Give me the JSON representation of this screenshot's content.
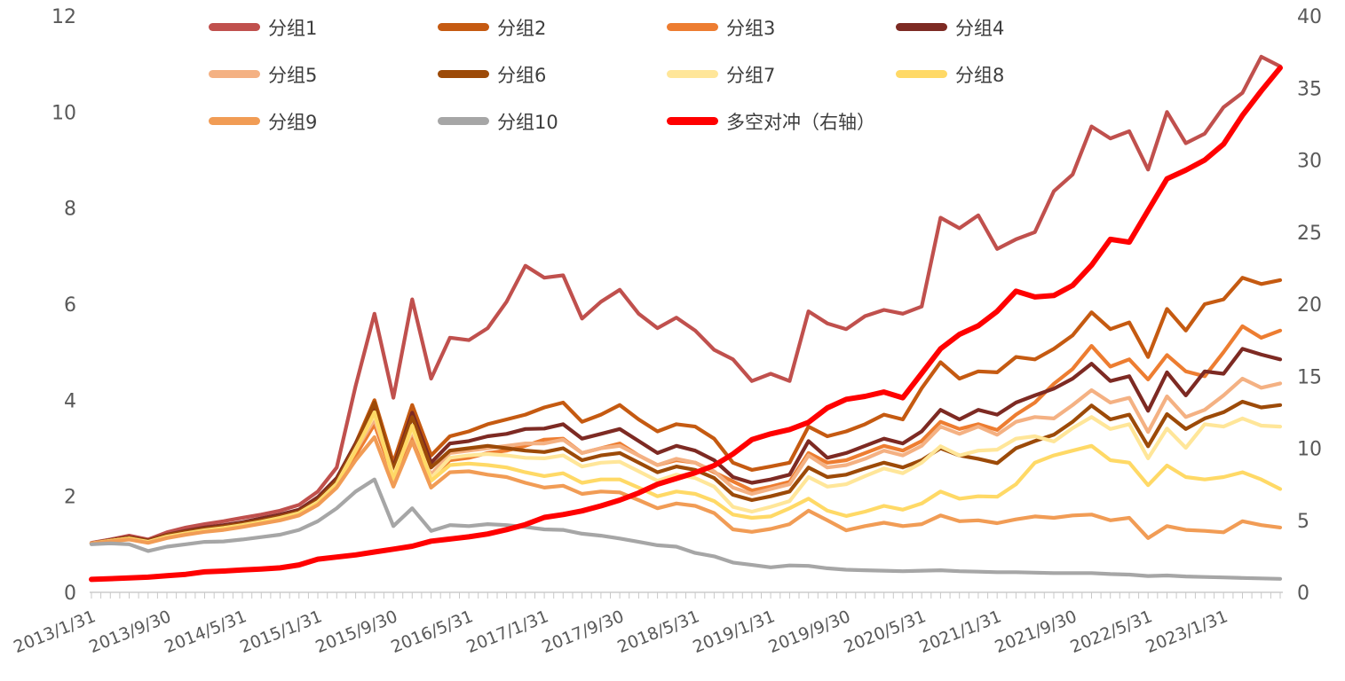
{
  "chart_data": {
    "type": "line",
    "title": "",
    "sampling": "bimonthly samples of monthly data",
    "x_start": "2013/1/31",
    "x_end": "2023/7/31",
    "points_per_series": 64,
    "x_tick_labels": [
      "2013/1/31",
      "2013/9/30",
      "2014/5/31",
      "2015/1/31",
      "2015/9/30",
      "2016/5/31",
      "2017/1/31",
      "2017/9/30",
      "2018/5/31",
      "2019/1/31",
      "2019/9/30",
      "2020/5/31",
      "2021/1/31",
      "2021/9/30",
      "2022/5/31",
      "2023/1/31"
    ],
    "x_tick_every_points": 4,
    "left_axis": {
      "min": 0,
      "max": 12,
      "step": 2,
      "ticks": [
        0,
        2,
        4,
        6,
        8,
        10,
        12
      ]
    },
    "right_axis": {
      "min": 0,
      "max": 40,
      "step": 5,
      "ticks": [
        0,
        5,
        10,
        15,
        20,
        25,
        30,
        35,
        40
      ]
    },
    "grid": "off",
    "legend_position": "top",
    "colors": {
      "axis_text": "#595959",
      "axis_line": "#d9d9d9",
      "tick_mark": "#c9c9c9",
      "legend_text": "#3d3d3d",
      "background": "#ffffff"
    },
    "series": [
      {
        "name": "分组1",
        "axis": "left",
        "color": "#C0504D",
        "width": 4.2,
        "values": [
          1.03,
          1.1,
          1.18,
          1.1,
          1.25,
          1.35,
          1.42,
          1.48,
          1.55,
          1.62,
          1.7,
          1.82,
          2.1,
          2.6,
          4.3,
          5.8,
          4.05,
          6.1,
          4.45,
          5.3,
          5.25,
          5.5,
          6.05,
          6.8,
          6.55,
          6.6,
          5.7,
          6.05,
          6.3,
          5.8,
          5.5,
          5.72,
          5.45,
          5.05,
          4.85,
          4.4,
          4.55,
          4.4,
          5.85,
          5.6,
          5.48,
          5.75,
          5.88,
          5.8,
          5.95,
          7.8,
          7.58,
          7.85,
          7.15,
          7.35,
          7.5,
          8.35,
          8.7,
          9.7,
          9.45,
          9.6,
          8.8,
          10.0,
          9.35,
          9.55,
          10.1,
          10.4,
          11.15,
          10.95
        ]
      },
      {
        "name": "分组2",
        "axis": "left",
        "color": "#C55A11",
        "width": 4.2,
        "values": [
          1.02,
          1.08,
          1.14,
          1.07,
          1.18,
          1.26,
          1.33,
          1.38,
          1.44,
          1.52,
          1.6,
          1.7,
          1.95,
          2.35,
          3.1,
          4.0,
          2.7,
          3.9,
          2.85,
          3.25,
          3.35,
          3.5,
          3.6,
          3.7,
          3.85,
          3.95,
          3.55,
          3.7,
          3.9,
          3.6,
          3.35,
          3.5,
          3.45,
          3.2,
          2.7,
          2.55,
          2.62,
          2.7,
          3.45,
          3.25,
          3.35,
          3.5,
          3.7,
          3.6,
          4.25,
          4.79,
          4.45,
          4.6,
          4.58,
          4.9,
          4.85,
          5.07,
          5.35,
          5.83,
          5.48,
          5.62,
          4.9,
          5.9,
          5.45,
          6.0,
          6.1,
          6.55,
          6.42,
          6.5
        ]
      },
      {
        "name": "分组3",
        "axis": "left",
        "color": "#ED7D31",
        "width": 4.2,
        "values": [
          1.02,
          1.07,
          1.12,
          1.05,
          1.15,
          1.22,
          1.28,
          1.33,
          1.38,
          1.45,
          1.52,
          1.62,
          1.85,
          2.2,
          2.85,
          3.5,
          2.4,
          3.25,
          2.38,
          2.75,
          2.8,
          2.9,
          2.95,
          3.05,
          3.18,
          3.2,
          2.9,
          3.0,
          3.1,
          2.85,
          2.65,
          2.75,
          2.7,
          2.5,
          2.31,
          2.12,
          2.2,
          2.3,
          2.9,
          2.7,
          2.75,
          2.9,
          3.05,
          2.95,
          3.15,
          3.55,
          3.4,
          3.5,
          3.38,
          3.7,
          3.95,
          4.34,
          4.65,
          5.13,
          4.7,
          4.85,
          4.43,
          4.94,
          4.6,
          4.5,
          5.0,
          5.54,
          5.3,
          5.45
        ]
      },
      {
        "name": "分组4",
        "axis": "left",
        "color": "#7D2A23",
        "width": 4.2,
        "values": [
          1.02,
          1.09,
          1.15,
          1.08,
          1.2,
          1.28,
          1.35,
          1.4,
          1.46,
          1.54,
          1.62,
          1.72,
          1.98,
          2.38,
          3.1,
          3.85,
          2.6,
          3.74,
          2.7,
          3.1,
          3.15,
          3.25,
          3.3,
          3.4,
          3.41,
          3.5,
          3.2,
          3.3,
          3.4,
          3.15,
          2.9,
          3.05,
          2.95,
          2.75,
          2.4,
          2.28,
          2.35,
          2.45,
          3.15,
          2.8,
          2.9,
          3.05,
          3.2,
          3.1,
          3.35,
          3.8,
          3.6,
          3.8,
          3.7,
          3.95,
          4.1,
          4.24,
          4.45,
          4.76,
          4.4,
          4.5,
          3.78,
          4.58,
          4.1,
          4.6,
          4.55,
          5.07,
          4.95,
          4.85
        ]
      },
      {
        "name": "分组5",
        "axis": "left",
        "color": "#F4B183",
        "width": 4.2,
        "values": [
          1.02,
          1.08,
          1.13,
          1.06,
          1.17,
          1.24,
          1.3,
          1.35,
          1.41,
          1.48,
          1.56,
          1.66,
          1.9,
          2.28,
          2.95,
          3.6,
          2.48,
          3.34,
          2.45,
          2.9,
          2.95,
          3.0,
          3.05,
          3.1,
          3.1,
          3.18,
          2.9,
          3.0,
          3.05,
          2.85,
          2.65,
          2.78,
          2.7,
          2.52,
          2.18,
          2.05,
          2.15,
          2.25,
          2.85,
          2.6,
          2.65,
          2.78,
          2.95,
          2.85,
          3.05,
          3.45,
          3.3,
          3.45,
          3.28,
          3.55,
          3.65,
          3.62,
          3.9,
          4.21,
          3.95,
          4.05,
          3.34,
          4.08,
          3.65,
          3.8,
          4.1,
          4.45,
          4.26,
          4.35
        ]
      },
      {
        "name": "分组6",
        "axis": "left",
        "color": "#9C4A08",
        "width": 4.2,
        "values": [
          1.02,
          1.08,
          1.14,
          1.07,
          1.19,
          1.26,
          1.32,
          1.37,
          1.43,
          1.5,
          1.58,
          1.68,
          1.92,
          2.32,
          3.05,
          3.95,
          2.55,
          3.65,
          2.6,
          2.95,
          3.0,
          3.05,
          3.0,
          2.95,
          2.92,
          3.0,
          2.75,
          2.85,
          2.9,
          2.7,
          2.5,
          2.62,
          2.55,
          2.38,
          2.03,
          1.92,
          2.0,
          2.1,
          2.6,
          2.4,
          2.45,
          2.58,
          2.7,
          2.6,
          2.75,
          3.0,
          2.85,
          2.78,
          2.69,
          3.0,
          3.15,
          3.28,
          3.55,
          3.89,
          3.6,
          3.7,
          3.04,
          3.71,
          3.4,
          3.62,
          3.75,
          3.97,
          3.85,
          3.9
        ]
      },
      {
        "name": "分组7",
        "axis": "left",
        "color": "#FFE699",
        "width": 4.2,
        "values": [
          1.02,
          1.07,
          1.12,
          1.05,
          1.16,
          1.23,
          1.29,
          1.34,
          1.4,
          1.47,
          1.55,
          1.65,
          1.88,
          2.26,
          2.98,
          3.7,
          2.42,
          3.41,
          2.38,
          2.8,
          2.85,
          2.88,
          2.85,
          2.8,
          2.79,
          2.85,
          2.62,
          2.7,
          2.72,
          2.52,
          2.32,
          2.45,
          2.38,
          2.2,
          1.78,
          1.68,
          1.78,
          1.9,
          2.4,
          2.2,
          2.25,
          2.42,
          2.58,
          2.48,
          2.7,
          3.04,
          2.85,
          2.95,
          2.97,
          3.2,
          3.25,
          3.14,
          3.42,
          3.65,
          3.4,
          3.5,
          2.79,
          3.41,
          3.01,
          3.5,
          3.45,
          3.62,
          3.47,
          3.45
        ]
      },
      {
        "name": "分组8",
        "axis": "left",
        "color": "#FFD966",
        "width": 4.2,
        "values": [
          1.02,
          1.07,
          1.12,
          1.04,
          1.15,
          1.22,
          1.28,
          1.33,
          1.39,
          1.46,
          1.54,
          1.64,
          1.86,
          2.24,
          2.95,
          3.75,
          2.35,
          3.47,
          2.32,
          2.65,
          2.68,
          2.65,
          2.6,
          2.5,
          2.42,
          2.48,
          2.28,
          2.35,
          2.35,
          2.18,
          2.0,
          2.1,
          2.05,
          1.9,
          1.62,
          1.55,
          1.58,
          1.75,
          1.95,
          1.7,
          1.59,
          1.68,
          1.8,
          1.72,
          1.85,
          2.1,
          1.95,
          2.0,
          1.99,
          2.25,
          2.7,
          2.85,
          2.95,
          3.05,
          2.75,
          2.7,
          2.23,
          2.64,
          2.4,
          2.35,
          2.4,
          2.5,
          2.35,
          2.15
        ]
      },
      {
        "name": "分组9",
        "axis": "left",
        "color": "#F19C55",
        "width": 4.2,
        "values": [
          1.02,
          1.06,
          1.1,
          1.03,
          1.13,
          1.2,
          1.26,
          1.3,
          1.36,
          1.43,
          1.5,
          1.6,
          1.82,
          2.18,
          2.75,
          3.23,
          2.2,
          3.14,
          2.18,
          2.5,
          2.52,
          2.45,
          2.4,
          2.28,
          2.18,
          2.22,
          2.05,
          2.1,
          2.08,
          1.92,
          1.75,
          1.85,
          1.8,
          1.65,
          1.31,
          1.26,
          1.32,
          1.42,
          1.7,
          1.5,
          1.29,
          1.38,
          1.45,
          1.38,
          1.42,
          1.6,
          1.48,
          1.5,
          1.44,
          1.52,
          1.58,
          1.55,
          1.6,
          1.62,
          1.5,
          1.55,
          1.13,
          1.38,
          1.3,
          1.28,
          1.25,
          1.48,
          1.4,
          1.35
        ]
      },
      {
        "name": "分组10",
        "axis": "left",
        "color": "#A6A6A6",
        "width": 4.2,
        "values": [
          1.0,
          1.02,
          1.0,
          0.86,
          0.95,
          1.0,
          1.05,
          1.06,
          1.1,
          1.15,
          1.2,
          1.3,
          1.48,
          1.75,
          2.1,
          2.35,
          1.38,
          1.75,
          1.28,
          1.4,
          1.38,
          1.42,
          1.4,
          1.36,
          1.31,
          1.3,
          1.22,
          1.18,
          1.12,
          1.05,
          0.98,
          0.95,
          0.82,
          0.75,
          0.62,
          0.57,
          0.52,
          0.56,
          0.55,
          0.5,
          0.47,
          0.46,
          0.45,
          0.44,
          0.45,
          0.46,
          0.44,
          0.43,
          0.42,
          0.42,
          0.41,
          0.4,
          0.4,
          0.4,
          0.38,
          0.37,
          0.34,
          0.35,
          0.33,
          0.32,
          0.31,
          0.3,
          0.29,
          0.28
        ]
      },
      {
        "name": "多空对冲（右轴）",
        "axis": "right",
        "color": "#FF0000",
        "width": 6,
        "values": [
          0.9,
          0.95,
          1.0,
          1.05,
          1.15,
          1.25,
          1.42,
          1.48,
          1.55,
          1.62,
          1.7,
          1.9,
          2.3,
          2.45,
          2.6,
          2.8,
          3.0,
          3.2,
          3.55,
          3.7,
          3.85,
          4.05,
          4.35,
          4.7,
          5.2,
          5.4,
          5.65,
          6.0,
          6.4,
          6.9,
          7.5,
          7.9,
          8.3,
          8.8,
          9.6,
          10.6,
          11.0,
          11.3,
          11.8,
          12.8,
          13.4,
          13.6,
          13.9,
          13.5,
          15.2,
          16.9,
          17.9,
          18.5,
          19.5,
          20.9,
          20.5,
          20.6,
          21.3,
          22.7,
          24.5,
          24.3,
          26.5,
          28.7,
          29.3,
          30.0,
          31.1,
          33.1,
          34.8,
          36.4
        ]
      }
    ]
  }
}
